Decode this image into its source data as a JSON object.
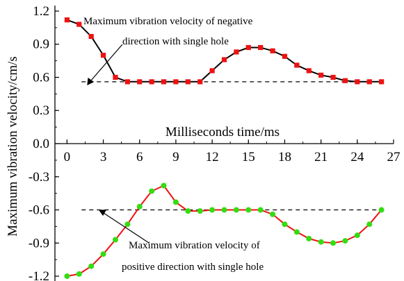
{
  "chart_data": {
    "type": "line",
    "xlabel": "Milliseconds time/ms",
    "ylabel": "Maximum vibration velocity/cm/s",
    "xlim": [
      -1,
      27
    ],
    "ylim": [
      -1.25,
      1.25
    ],
    "x_ticks": [
      0,
      3,
      6,
      9,
      12,
      15,
      18,
      21,
      24,
      27
    ],
    "y_ticks": [
      1.2,
      0.9,
      0.6,
      0.3,
      0.0,
      -0.3,
      -0.6,
      -0.9,
      -1.2
    ],
    "y_tick_labels": [
      "1.2",
      "0.9",
      "0.6",
      "0.3",
      "0.0",
      "-0.3",
      "-0.6",
      "-0.9",
      "-1.2"
    ],
    "grid": false,
    "series": [
      {
        "name": "Maximum vibration velocity of negative direction with single hole",
        "line_color": "#000000",
        "marker": "square",
        "marker_color": "#ee1111",
        "x": [
          0,
          1,
          2,
          3,
          4,
          5,
          6,
          7,
          8,
          9,
          10,
          11,
          12,
          13,
          14,
          15,
          16,
          17,
          18,
          19,
          20,
          21,
          22,
          23,
          24,
          25,
          26
        ],
        "values": [
          1.12,
          1.08,
          0.97,
          0.8,
          0.6,
          0.56,
          0.56,
          0.56,
          0.56,
          0.56,
          0.56,
          0.56,
          0.66,
          0.76,
          0.83,
          0.87,
          0.87,
          0.84,
          0.79,
          0.71,
          0.66,
          0.62,
          0.6,
          0.57,
          0.56,
          0.56,
          0.56
        ]
      },
      {
        "name": "Maximum vibration velocity of positive direction with single hole",
        "line_color": "#ee1111",
        "marker": "circle",
        "marker_color": "#33dd11",
        "x": [
          0,
          1,
          2,
          3,
          4,
          5,
          6,
          7,
          8,
          9,
          10,
          11,
          12,
          13,
          14,
          15,
          16,
          17,
          18,
          19,
          20,
          21,
          22,
          23,
          24,
          25,
          26
        ],
        "values": [
          -1.2,
          -1.18,
          -1.11,
          -1.0,
          -0.87,
          -0.73,
          -0.57,
          -0.43,
          -0.38,
          -0.53,
          -0.61,
          -0.61,
          -0.6,
          -0.6,
          -0.6,
          -0.6,
          -0.6,
          -0.64,
          -0.73,
          -0.8,
          -0.86,
          -0.89,
          -0.9,
          -0.88,
          -0.83,
          -0.73,
          -0.6
        ]
      }
    ],
    "reference_lines": [
      {
        "y": 0.56,
        "style": "dashed"
      },
      {
        "y": -0.6,
        "style": "dashed"
      }
    ],
    "annotations": {
      "negative_line1": "Maximum vibration velocity of negative",
      "negative_line2": "direction with single hole",
      "positive_line1": "Maximum vibration velocity of",
      "positive_line2": "positive direction with single hole"
    }
  }
}
